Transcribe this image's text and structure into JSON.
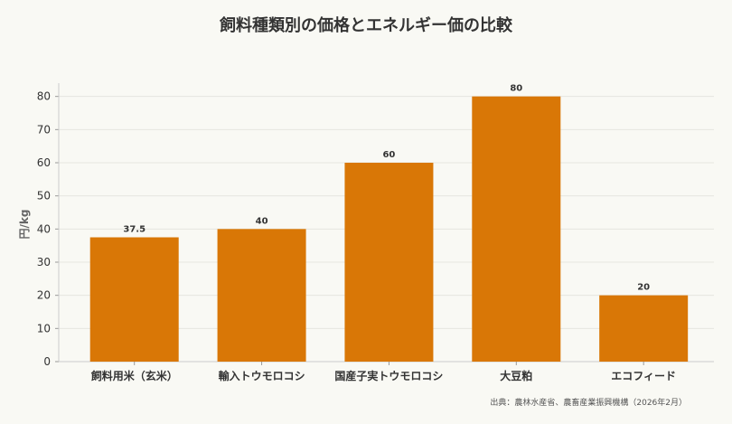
{
  "chart_data": {
    "type": "bar",
    "title": "飼料種類別の価格とエネルギー価の比較",
    "ylabel": "円/kg",
    "xlabel": "",
    "categories": [
      "飼料用米（玄米）",
      "輸入トウモロコシ",
      "国産子実トウモロコシ",
      "大豆粕",
      "エコフィード"
    ],
    "values": [
      37.5,
      40,
      60,
      80,
      20
    ],
    "data_labels": [
      "37.5",
      "40",
      "60",
      "80",
      "20"
    ],
    "yticks": [
      0,
      10,
      20,
      30,
      40,
      50,
      60,
      70,
      80
    ],
    "ylim": [
      0,
      84
    ],
    "grid": true,
    "bar_color": "#d97706",
    "source": "出典：農林水産省、農畜産業振興機構（2026年2月）"
  }
}
